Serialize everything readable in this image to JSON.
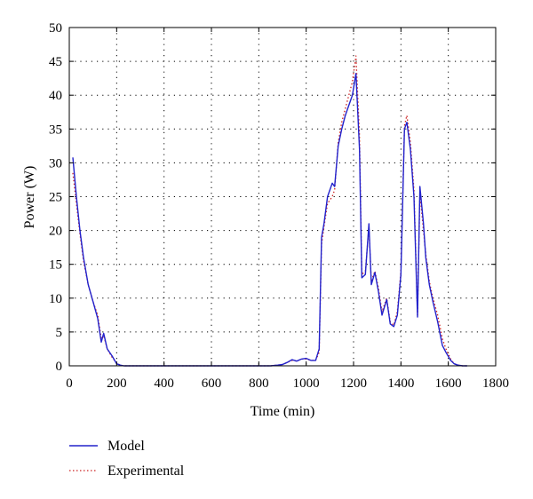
{
  "chart_data": {
    "type": "line",
    "title": "",
    "xlabel": "Time (min)",
    "ylabel": "Power (W)",
    "xlim": [
      0,
      1800
    ],
    "ylim": [
      0,
      50
    ],
    "xticks": [
      0,
      200,
      400,
      600,
      800,
      1000,
      1200,
      1400,
      1600,
      1800
    ],
    "yticks": [
      0,
      5,
      10,
      15,
      20,
      25,
      30,
      35,
      40,
      45,
      50
    ],
    "grid": true,
    "legend": "bottom-left, below plot",
    "series": [
      {
        "name": "Model",
        "color": "#2222cc",
        "style": "solid",
        "x": [
          15,
          30,
          45,
          60,
          80,
          100,
          120,
          135,
          145,
          160,
          180,
          200,
          215,
          230,
          300,
          400,
          500,
          600,
          700,
          800,
          850,
          880,
          900,
          920,
          940,
          960,
          980,
          1000,
          1020,
          1040,
          1055,
          1065,
          1075,
          1090,
          1110,
          1120,
          1135,
          1150,
          1165,
          1180,
          1195,
          1210,
          1225,
          1235,
          1250,
          1265,
          1275,
          1290,
          1305,
          1320,
          1340,
          1355,
          1370,
          1385,
          1400,
          1415,
          1425,
          1440,
          1455,
          1470,
          1480,
          1495,
          1505,
          1520,
          1535,
          1555,
          1575,
          1590,
          1610,
          1625,
          1640,
          1660,
          1680
        ],
        "y": [
          30.8,
          25,
          20,
          16,
          12,
          9.5,
          7,
          3.5,
          4.8,
          2.5,
          1.5,
          0.3,
          0.1,
          0,
          0,
          0,
          0,
          0,
          0,
          0,
          0,
          0.1,
          0.2,
          0.5,
          0.9,
          0.7,
          1.0,
          1.1,
          0.8,
          0.8,
          2.5,
          19,
          21,
          25,
          27,
          26.5,
          32.5,
          35,
          37,
          38.5,
          40,
          43.2,
          32,
          13,
          13.5,
          21,
          12,
          13.8,
          11,
          7.5,
          9.8,
          6.2,
          5.8,
          7.5,
          13.5,
          35,
          36,
          32,
          25,
          7.2,
          26.5,
          21,
          16,
          12,
          9.5,
          6.5,
          3,
          2,
          0.8,
          0.3,
          0.1,
          0,
          0
        ]
      },
      {
        "name": "Experimental",
        "color": "#cc2222",
        "style": "dotted",
        "x": [
          15,
          30,
          45,
          60,
          80,
          100,
          120,
          135,
          145,
          160,
          180,
          200,
          215,
          230,
          300,
          400,
          500,
          600,
          700,
          800,
          850,
          880,
          900,
          920,
          940,
          960,
          980,
          1000,
          1020,
          1040,
          1055,
          1065,
          1075,
          1090,
          1110,
          1120,
          1135,
          1150,
          1165,
          1180,
          1195,
          1210,
          1225,
          1235,
          1250,
          1265,
          1275,
          1290,
          1305,
          1320,
          1340,
          1355,
          1370,
          1385,
          1400,
          1415,
          1425,
          1440,
          1455,
          1470,
          1480,
          1495,
          1505,
          1520,
          1535,
          1555,
          1575,
          1590,
          1610,
          1625,
          1640,
          1660,
          1680
        ],
        "y": [
          28.5,
          24,
          19.5,
          15.5,
          12,
          9.5,
          7.5,
          4,
          4.5,
          2.5,
          1.3,
          0.4,
          0.1,
          0,
          0,
          0,
          0,
          0,
          0,
          0,
          0,
          0.1,
          0.2,
          0.5,
          0.8,
          0.7,
          1.0,
          1.0,
          0.8,
          0.8,
          2,
          18,
          20.5,
          24,
          25,
          26,
          33,
          36,
          38,
          40,
          42,
          45.8,
          34,
          13.5,
          14,
          20.5,
          12.5,
          14,
          11.5,
          8,
          10,
          6.5,
          6,
          8,
          14,
          35.5,
          37,
          33,
          26,
          7.5,
          25.5,
          20,
          16.5,
          12.5,
          10,
          7.5,
          4,
          2.5,
          1,
          0.3,
          0.1,
          0,
          0
        ]
      }
    ]
  }
}
